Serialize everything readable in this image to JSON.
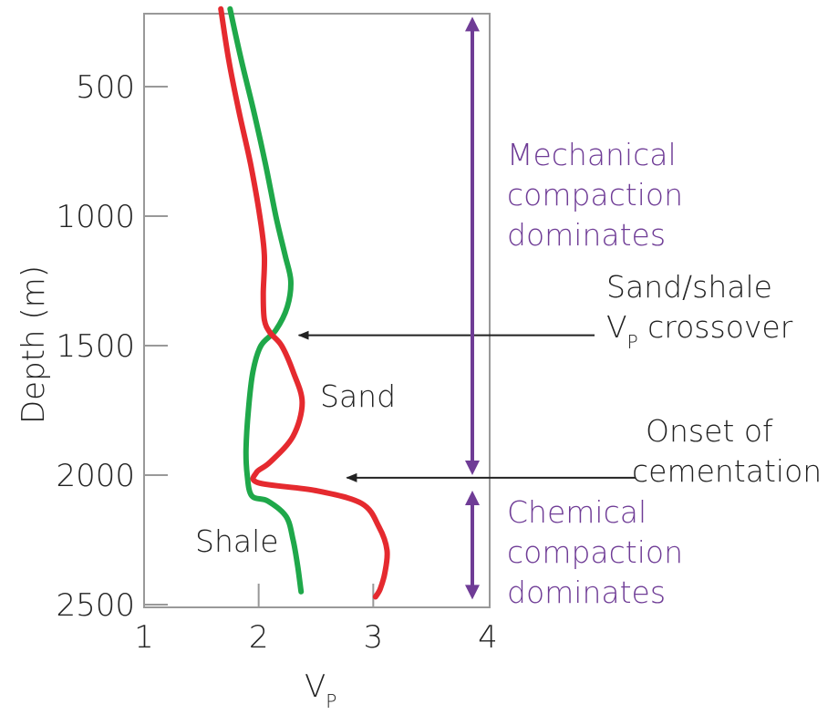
{
  "chart_data": {
    "type": "line",
    "xlabel": "V",
    "xlabel_sub": "P",
    "ylabel": "Depth (m)",
    "xlim": [
      1,
      4
    ],
    "ylim": [
      200,
      2500
    ],
    "y_inverted": true,
    "x_ticks": [
      "1",
      "2",
      "3",
      "4"
    ],
    "y_ticks": [
      "500",
      "1000",
      "1500",
      "2000",
      "2500"
    ],
    "series": [
      {
        "name": "Shale",
        "color": "#1fa84a",
        "points": [
          [
            1.75,
            200
          ],
          [
            1.85,
            400
          ],
          [
            1.96,
            600
          ],
          [
            2.06,
            800
          ],
          [
            2.15,
            1000
          ],
          [
            2.23,
            1150
          ],
          [
            2.28,
            1250
          ],
          [
            2.25,
            1350
          ],
          [
            2.15,
            1440
          ],
          [
            2.02,
            1500
          ],
          [
            1.95,
            1600
          ],
          [
            1.91,
            1750
          ],
          [
            1.89,
            1900
          ],
          [
            1.9,
            2000
          ],
          [
            1.94,
            2080
          ],
          [
            2.08,
            2100
          ],
          [
            2.24,
            2160
          ],
          [
            2.3,
            2250
          ],
          [
            2.34,
            2350
          ],
          [
            2.37,
            2450
          ]
        ]
      },
      {
        "name": "Sand",
        "color": "#e52a2f",
        "points": [
          [
            1.67,
            200
          ],
          [
            1.74,
            400
          ],
          [
            1.83,
            600
          ],
          [
            1.93,
            800
          ],
          [
            2.01,
            1000
          ],
          [
            2.05,
            1150
          ],
          [
            2.04,
            1300
          ],
          [
            2.05,
            1400
          ],
          [
            2.1,
            1450
          ],
          [
            2.2,
            1500
          ],
          [
            2.3,
            1600
          ],
          [
            2.38,
            1720
          ],
          [
            2.3,
            1850
          ],
          [
            2.1,
            1950
          ],
          [
            1.98,
            1990
          ],
          [
            2.0,
            2030
          ],
          [
            2.5,
            2060
          ],
          [
            2.9,
            2110
          ],
          [
            3.05,
            2200
          ],
          [
            3.12,
            2290
          ],
          [
            3.1,
            2380
          ],
          [
            3.06,
            2440
          ],
          [
            3.02,
            2470
          ]
        ]
      }
    ],
    "annotations": {
      "sand_label": "Sand",
      "shale_label": "Shale",
      "crossover_line1": "Sand/shale",
      "crossover_line2_main": "V",
      "crossover_line2_sub": "P",
      "crossover_line2_rest": " crossover",
      "cementation_line1": "Onset of",
      "cementation_line2": "cementation",
      "mechanical_line1": "Mechanical",
      "mechanical_line2": "compaction",
      "mechanical_line3": "dominates",
      "chemical_line1": "Chemical",
      "chemical_line2": "compaction",
      "chemical_line3": "dominates",
      "crossover_depth": 1460,
      "cementation_depth": 2010,
      "mechanical_range": [
        230,
        2000
      ],
      "chemical_range": [
        2060,
        2480
      ]
    },
    "colors": {
      "axis": "#999999",
      "mechanical_arrow": "#6f3c96",
      "text": "#222222"
    }
  }
}
